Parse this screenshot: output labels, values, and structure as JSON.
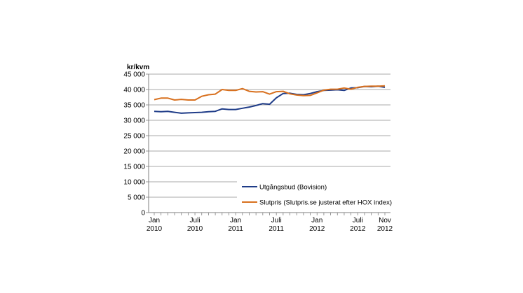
{
  "chart_data": {
    "type": "line",
    "ylabel": "kr/kvm",
    "ylim": [
      0,
      45000
    ],
    "yticks": [
      0,
      5000,
      10000,
      15000,
      20000,
      25000,
      30000,
      35000,
      40000,
      45000
    ],
    "ytick_labels": [
      "0",
      "5 000",
      "10 000",
      "15 000",
      "20 000",
      "25 000",
      "30 000",
      "35 000",
      "40 000",
      "45 000"
    ],
    "x_start": "2010-01",
    "x_end": "2012-11",
    "xtick_labels": [
      {
        "month": "2010-01",
        "line1": "Jan",
        "line2": "2010"
      },
      {
        "month": "2010-07",
        "line1": "Juli",
        "line2": "2010"
      },
      {
        "month": "2011-01",
        "line1": "Jan",
        "line2": "2011"
      },
      {
        "month": "2011-07",
        "line1": "Juli",
        "line2": "2011"
      },
      {
        "month": "2012-01",
        "line1": "Jan",
        "line2": "2012"
      },
      {
        "month": "2012-07",
        "line1": "Juli",
        "line2": "2012"
      },
      {
        "month": "2012-11",
        "line1": "Nov",
        "line2": "2012"
      }
    ],
    "grid": true,
    "legend_position": "inside-bottom-right",
    "series": [
      {
        "name": "Utgångsbud (Bovision)",
        "color": "#1f3c88",
        "values": [
          32900,
          32800,
          32900,
          32600,
          32300,
          32400,
          32500,
          32600,
          32800,
          32900,
          33700,
          33500,
          33500,
          33900,
          34300,
          34800,
          35400,
          35200,
          37300,
          38700,
          38800,
          38400,
          38300,
          38700,
          39300,
          39700,
          39800,
          39900,
          39700,
          40500,
          40600,
          41000,
          40900,
          41100,
          40700
        ]
      },
      {
        "name": "Slutpris (Slutpris.se justerat efter HOX index)",
        "color": "#d8701e",
        "values": [
          36700,
          37200,
          37200,
          36600,
          36800,
          36600,
          36600,
          37800,
          38300,
          38500,
          40000,
          39700,
          39700,
          40300,
          39400,
          39200,
          39300,
          38500,
          39300,
          39400,
          38600,
          38200,
          38000,
          38100,
          38900,
          39800,
          40100,
          40100,
          40500,
          40100,
          40700,
          41000,
          41100,
          41100,
          41200
        ]
      }
    ]
  }
}
